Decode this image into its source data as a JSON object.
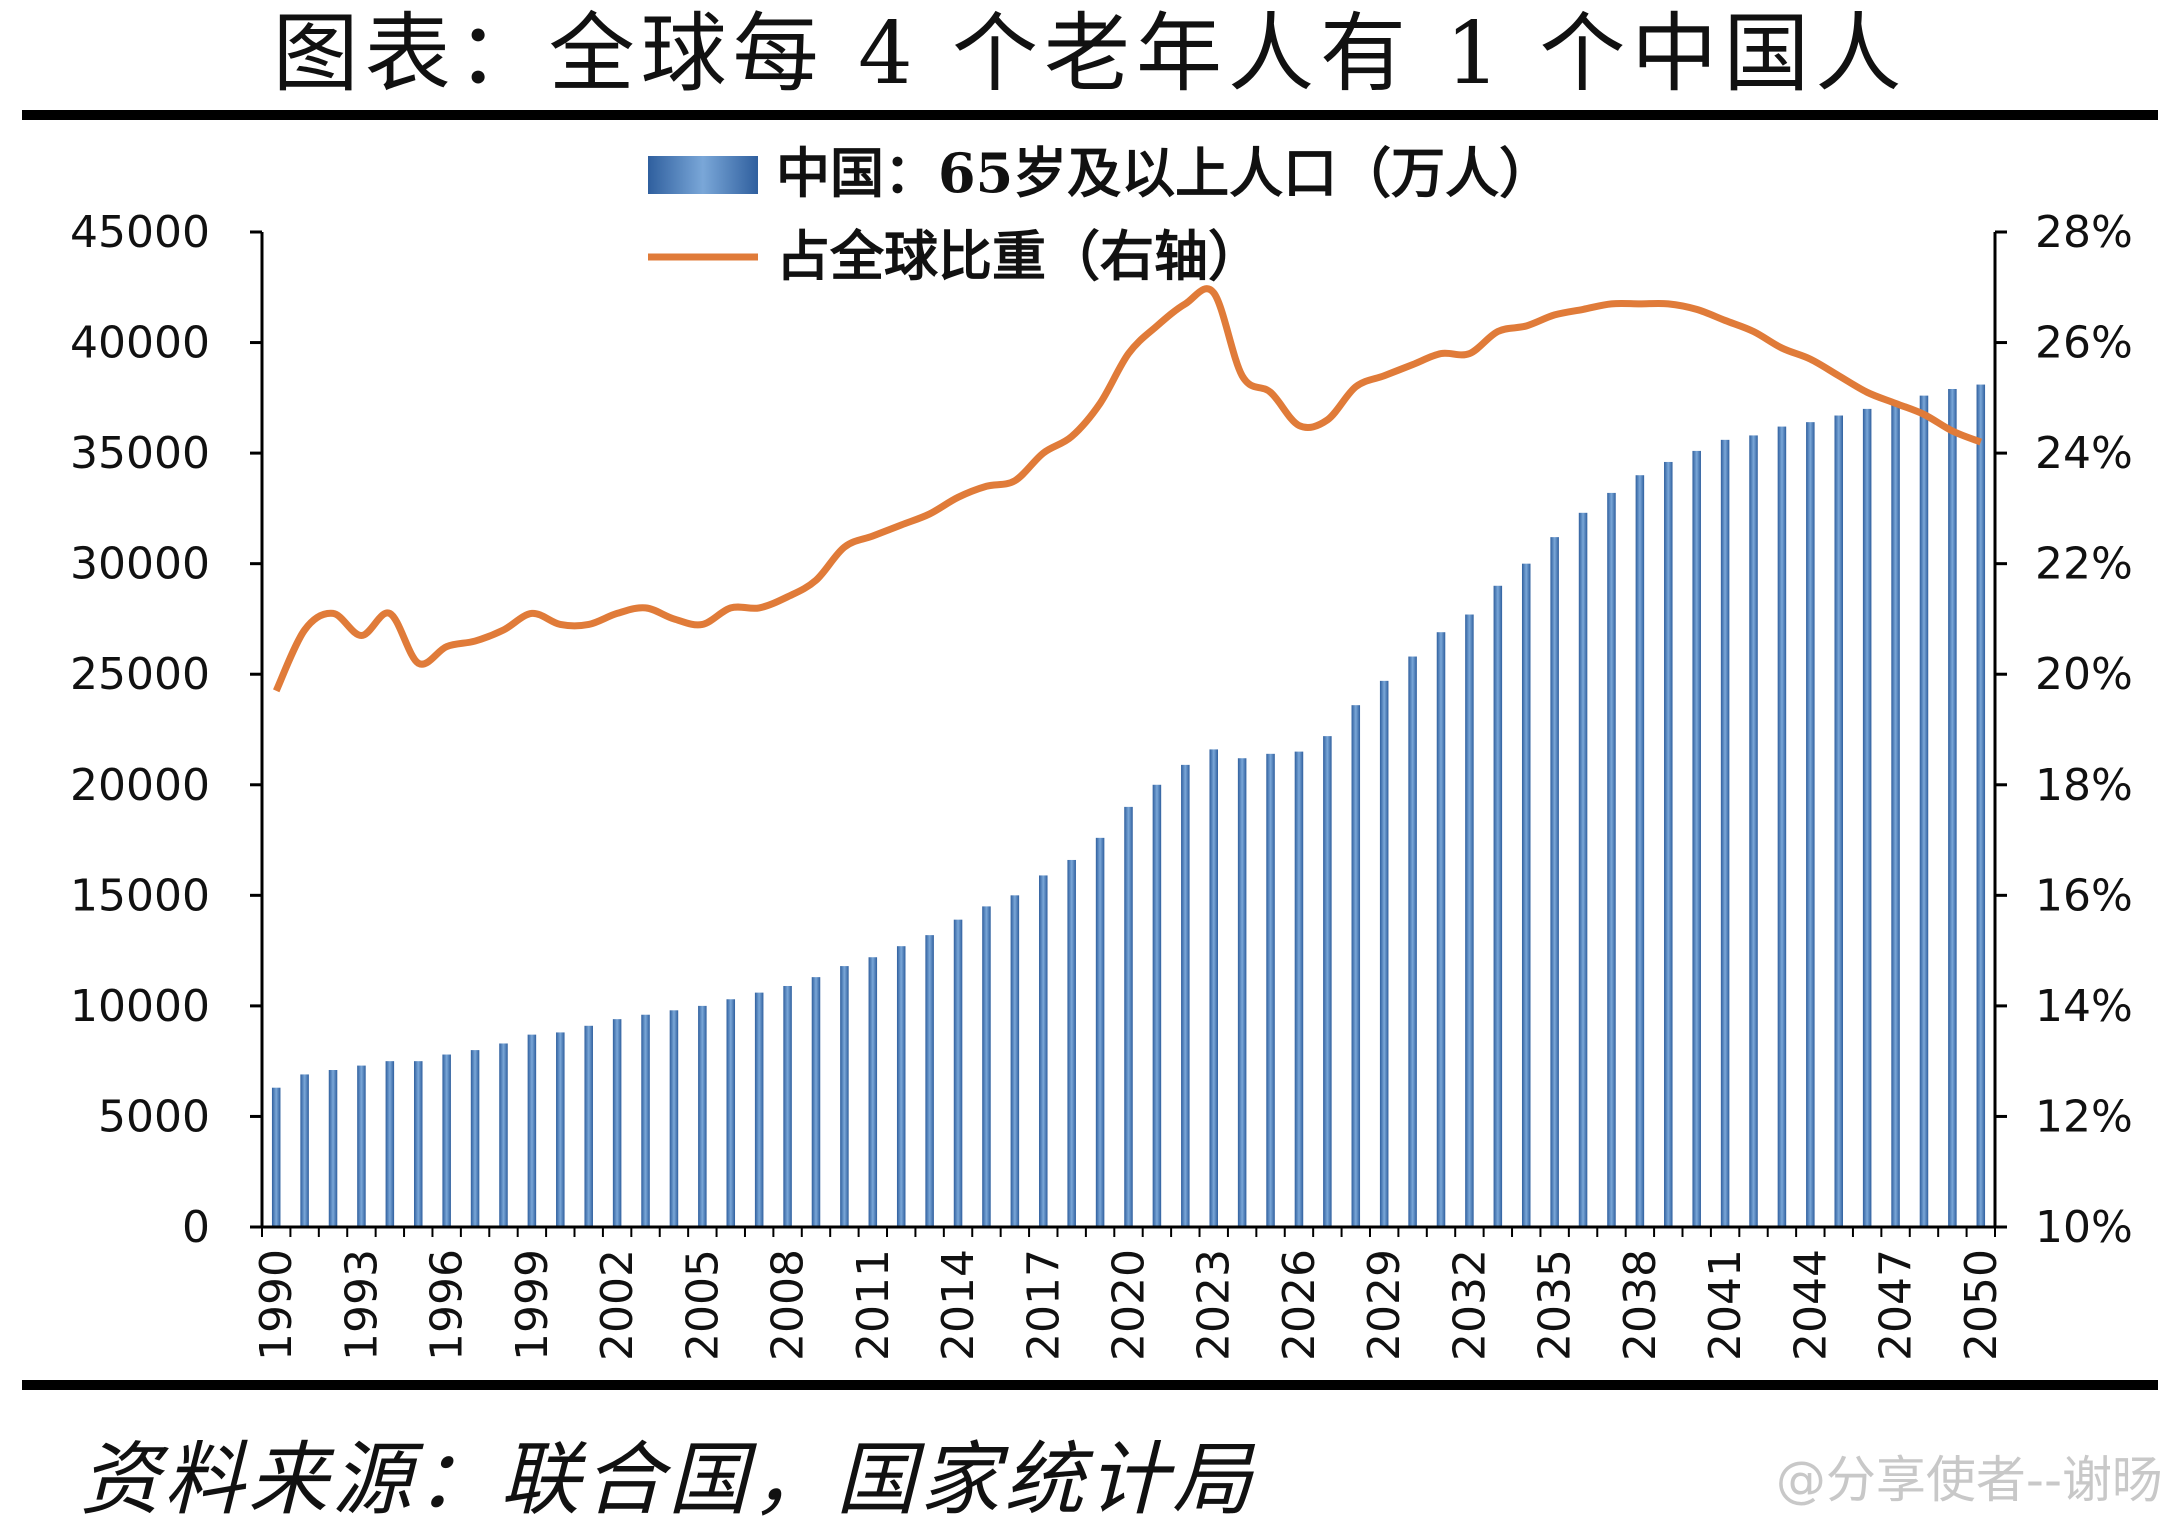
{
  "title": "图表：全球每 4 个老年人有 1 个中国人",
  "source": "资料来源：联合国，国家统计局",
  "watermark": "@分享使者--谢旸",
  "colors": {
    "bar": "#4f81bd",
    "line": "#e07b39",
    "axis": "#000000"
  },
  "chart_data": {
    "type": "bar+line",
    "legend": [
      "中国：65岁及以上人口（万人）",
      "占全球比重（右轴）"
    ],
    "legend_position": "top",
    "x": [
      1990,
      1991,
      1992,
      1993,
      1994,
      1995,
      1996,
      1997,
      1998,
      1999,
      2000,
      2001,
      2002,
      2003,
      2004,
      2005,
      2006,
      2007,
      2008,
      2009,
      2010,
      2011,
      2012,
      2013,
      2014,
      2015,
      2016,
      2017,
      2018,
      2019,
      2020,
      2021,
      2022,
      2023,
      2024,
      2025,
      2026,
      2027,
      2028,
      2029,
      2030,
      2031,
      2032,
      2033,
      2034,
      2035,
      2036,
      2037,
      2038,
      2039,
      2040,
      2041,
      2042,
      2043,
      2044,
      2045,
      2046,
      2047,
      2048,
      2049,
      2050
    ],
    "x_tick_labels": [
      "1990",
      "1993",
      "1996",
      "1999",
      "2002",
      "2005",
      "2008",
      "2011",
      "2014",
      "2017",
      "2020",
      "2023",
      "2026",
      "2029",
      "2032",
      "2035",
      "2038",
      "2041",
      "2044",
      "2047",
      "2050"
    ],
    "series": [
      {
        "name": "中国：65岁及以上人口（万人）",
        "type": "bar",
        "axis": "left",
        "values": [
          6300,
          6900,
          7100,
          7300,
          7500,
          7500,
          7800,
          8000,
          8300,
          8700,
          8800,
          9100,
          9400,
          9600,
          9800,
          10000,
          10300,
          10600,
          10900,
          11300,
          11800,
          12200,
          12700,
          13200,
          13900,
          14500,
          15000,
          15900,
          16600,
          17600,
          19000,
          20000,
          20900,
          21600,
          21200,
          21400,
          21500,
          22200,
          23600,
          24700,
          25800,
          26900,
          27700,
          29000,
          30000,
          31200,
          32300,
          33200,
          34000,
          34600,
          35100,
          35600,
          35800,
          36200,
          36400,
          36700,
          37000,
          37300,
          37600,
          37900,
          38100
        ]
      },
      {
        "name": "占全球比重（右轴）",
        "type": "line",
        "axis": "right",
        "values": [
          19.7,
          20.8,
          21.1,
          20.7,
          21.1,
          20.2,
          20.5,
          20.6,
          20.8,
          21.1,
          20.9,
          20.9,
          21.1,
          21.2,
          21.0,
          20.9,
          21.2,
          21.2,
          21.4,
          21.7,
          22.3,
          22.5,
          22.7,
          22.9,
          23.2,
          23.4,
          23.5,
          24.0,
          24.3,
          24.9,
          25.8,
          26.3,
          26.7,
          26.9,
          25.4,
          25.1,
          24.5,
          24.6,
          25.2,
          25.4,
          25.6,
          25.8,
          25.8,
          26.2,
          26.3,
          26.5,
          26.6,
          26.7,
          26.7,
          26.7,
          26.6,
          26.4,
          26.2,
          25.9,
          25.7,
          25.4,
          25.1,
          24.9,
          24.7,
          24.4,
          24.2
        ]
      }
    ],
    "y_left": {
      "min": 0,
      "max": 45000,
      "ticks": [
        "0",
        "5000",
        "10000",
        "15000",
        "20000",
        "25000",
        "30000",
        "35000",
        "40000",
        "45000"
      ]
    },
    "y_right": {
      "min": 10,
      "max": 28,
      "ticks": [
        "10%",
        "12%",
        "14%",
        "16%",
        "18%",
        "20%",
        "22%",
        "24%",
        "26%",
        "28%"
      ]
    },
    "grid": false
  }
}
